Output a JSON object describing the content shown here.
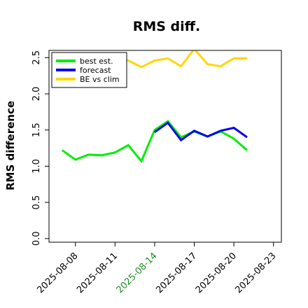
{
  "chart_data": {
    "type": "line",
    "title": "RMS diff.",
    "ylabel": "RMS difference",
    "xlabel": "",
    "ylim": [
      -0.05,
      2.6
    ],
    "yticks": [
      0.0,
      0.5,
      1.0,
      1.5,
      2.0,
      2.5
    ],
    "ytick_labels": [
      "0.0",
      "0.5",
      "1.0",
      "1.5",
      "2.0",
      "2.5"
    ],
    "xtick_labels": [
      "2025-08-08",
      "2025-08-11",
      "2025-08-14",
      "2025-08-17",
      "2025-08-20",
      "2025-08-23"
    ],
    "highlighted_xtick": "2025-08-14",
    "x_range_days": [
      0,
      17.6
    ],
    "x_days": [
      0,
      1,
      2,
      3,
      4,
      5,
      6,
      7,
      8,
      9,
      10,
      11,
      12,
      13,
      14,
      15
    ],
    "legend": {
      "position": "top-left",
      "entries": [
        "best est.",
        "forecast",
        "BE vs clim"
      ]
    },
    "grid": false,
    "series": [
      {
        "name": "best est.",
        "color": "#00ee00",
        "values": [
          null,
          1.22,
          1.09,
          1.16,
          1.15,
          1.19,
          1.29,
          1.07,
          1.5,
          1.62,
          1.4,
          1.48,
          1.41,
          1.48,
          1.38,
          1.22
        ]
      },
      {
        "name": "forecast",
        "color": "#0000ee",
        "values": [
          null,
          null,
          null,
          null,
          null,
          null,
          null,
          null,
          1.47,
          1.6,
          1.36,
          1.49,
          1.41,
          1.49,
          1.53,
          1.4
        ]
      },
      {
        "name": "BE vs clim",
        "color": "#ffd700",
        "values": [
          null,
          null,
          null,
          null,
          null,
          2.55,
          2.46,
          2.37,
          2.46,
          2.49,
          2.38,
          2.62,
          2.41,
          2.38,
          2.49,
          2.49
        ]
      }
    ]
  }
}
